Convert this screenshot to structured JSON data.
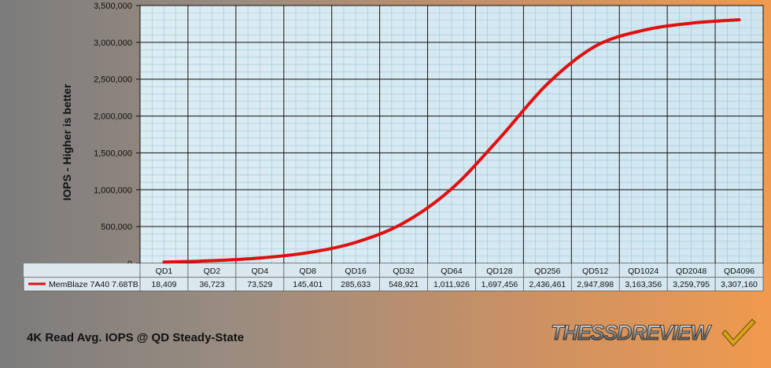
{
  "chart_data": {
    "type": "line",
    "title": "",
    "ylabel": "IOPS - Higher is better",
    "xlabel": "",
    "categories": [
      "QD1",
      "QD2",
      "QD4",
      "QD8",
      "QD16",
      "QD32",
      "QD64",
      "QD128",
      "QD256",
      "QD512",
      "QD1024",
      "QD2048",
      "QD4096"
    ],
    "series": [
      {
        "name": "MemBlaze 7A40 7.68TB",
        "color": "#e01010",
        "values": [
          18409,
          36723,
          73529,
          145401,
          285633,
          548921,
          1011926,
          1697456,
          2436461,
          2947898,
          3163356,
          3259795,
          3307160
        ],
        "labels": [
          "18,409",
          "36,723",
          "73,529",
          "145,401",
          "285,633",
          "548,921",
          "1,011,926",
          "1,697,456",
          "2,436,461",
          "2,947,898",
          "3,163,356",
          "3,259,795",
          "3,307,160"
        ]
      }
    ],
    "ylim": [
      0,
      3500000
    ],
    "yticks": [
      0,
      500000,
      1000000,
      1500000,
      2000000,
      2500000,
      3000000,
      3500000
    ],
    "ytick_labels": [
      "0",
      "500,000",
      "1,000,000",
      "1,500,000",
      "2,000,000",
      "2,500,000",
      "3,000,000",
      "3,500,000"
    ],
    "grid": true,
    "legend": "data-table-left"
  },
  "footer_title": "4K Read Avg. IOPS @ QD Steady-State",
  "logo_text": "THESSDREVIEW",
  "colors": {
    "plot_bg": "#d9edf5",
    "grid_major": "#111111",
    "grid_minor": "#9fc4d4",
    "line": "#e01010"
  }
}
